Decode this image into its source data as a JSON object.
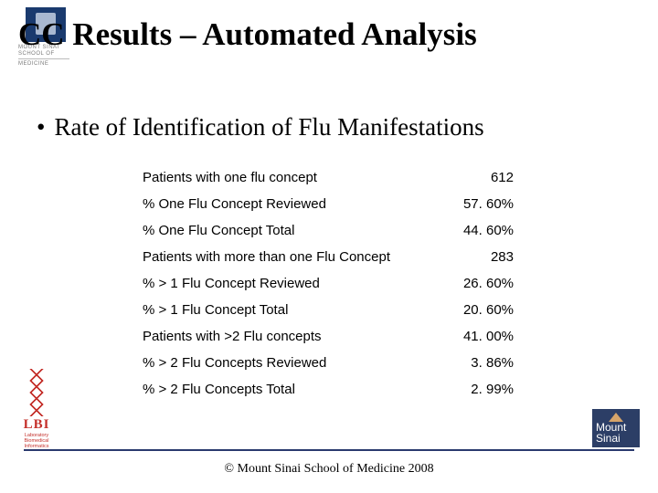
{
  "logo_top": {
    "line1": "MOUNT SINAI",
    "line2": "SCHOOL OF",
    "line3": "MEDICINE"
  },
  "title": "CC Results – Automated Analysis",
  "bullet": "Rate of Identification of Flu Manifestations",
  "table": {
    "rows": [
      {
        "label": "Patients with one flu concept",
        "value": "612"
      },
      {
        "label": "% One Flu Concept Reviewed",
        "value": "57. 60%"
      },
      {
        "label": "% One Flu Concept Total",
        "value": "44. 60%"
      },
      {
        "label": "Patients with more than one Flu Concept",
        "value": "283"
      },
      {
        "label": "% > 1 Flu Concept Reviewed",
        "value": "26. 60%"
      },
      {
        "label": "% > 1 Flu Concept Total",
        "value": "20. 60%"
      },
      {
        "label": "Patients with >2 Flu concepts",
        "value": "41. 00%"
      },
      {
        "label": "% > 2 Flu Concepts Reviewed",
        "value": "3. 86%"
      },
      {
        "label": "% > 2 Flu Concepts Total",
        "value": "2. 99%"
      }
    ],
    "label_fontsize": 15,
    "font_family": "Arial",
    "text_color": "#000000"
  },
  "footer": "© Mount Sinai School of Medicine 2008",
  "lbi": {
    "name": "LBI",
    "sub1": "Laboratory",
    "sub2": "Biomedical",
    "sub3": "Informatics"
  },
  "ms_logo": {
    "line1": "Mount",
    "line2": "Sinai"
  },
  "colors": {
    "crest": "#1a3a6e",
    "footer_rule": "#2a3a6e",
    "lbi_red": "#c4302b",
    "ms_bg": "#2c3e66",
    "ms_tri": "#d6a46a",
    "background": "#ffffff"
  }
}
